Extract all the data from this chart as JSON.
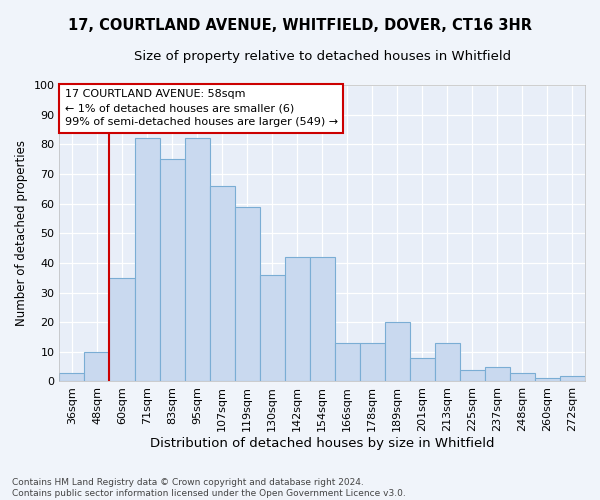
{
  "title1": "17, COURTLAND AVENUE, WHITFIELD, DOVER, CT16 3HR",
  "title2": "Size of property relative to detached houses in Whitfield",
  "xlabel": "Distribution of detached houses by size in Whitfield",
  "ylabel": "Number of detached properties",
  "categories": [
    "36sqm",
    "48sqm",
    "60sqm",
    "71sqm",
    "83sqm",
    "95sqm",
    "107sqm",
    "119sqm",
    "130sqm",
    "142sqm",
    "154sqm",
    "166sqm",
    "178sqm",
    "189sqm",
    "201sqm",
    "213sqm",
    "225sqm",
    "237sqm",
    "248sqm",
    "260sqm",
    "272sqm"
  ],
  "values": [
    3,
    10,
    35,
    82,
    75,
    82,
    66,
    59,
    36,
    42,
    42,
    13,
    13,
    20,
    8,
    13,
    4,
    5,
    3,
    1,
    2
  ],
  "bar_color": "#c9d9ef",
  "bar_edge_color": "#7aadd4",
  "vline_color": "#cc0000",
  "vline_pos": 2,
  "annotation_text": "17 COURTLAND AVENUE: 58sqm\n← 1% of detached houses are smaller (6)\n99% of semi-detached houses are larger (549) →",
  "annotation_box_color": "#ffffff",
  "annotation_box_edge_color": "#cc0000",
  "ylim": [
    0,
    100
  ],
  "yticks": [
    0,
    10,
    20,
    30,
    40,
    50,
    60,
    70,
    80,
    90,
    100
  ],
  "fig_bg_color": "#f0f4fa",
  "plot_bg_color": "#e8eef8",
  "grid_color": "#ffffff",
  "footnote": "Contains HM Land Registry data © Crown copyright and database right 2024.\nContains public sector information licensed under the Open Government Licence v3.0.",
  "title1_fontsize": 10.5,
  "title2_fontsize": 9.5,
  "xlabel_fontsize": 9.5,
  "ylabel_fontsize": 8.5,
  "tick_fontsize": 8,
  "annotation_fontsize": 8,
  "footnote_fontsize": 6.5
}
